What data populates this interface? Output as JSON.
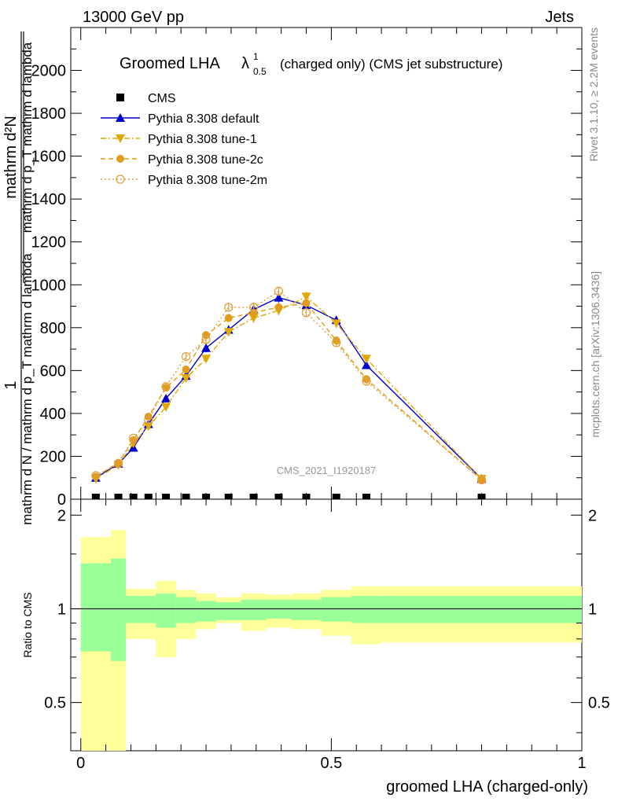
{
  "header": {
    "left": "13000 GeV pp",
    "right": "Jets"
  },
  "side_labels": {
    "rivet": "Rivet 3.1.10, ≥ 2.2M events",
    "mcplots": "mcplots.cern.ch [arXiv:1306.3436]"
  },
  "watermark": "CMS_2021_I1920187",
  "title": {
    "main": "Groomed LHA",
    "lambda": "λ",
    "sup": "1",
    "sub": "0.5",
    "rest": "(charged only) (CMS jet substructure)"
  },
  "legend": [
    {
      "label": "CMS",
      "color": "#000000",
      "marker": "square",
      "dash": "none"
    },
    {
      "label": "Pythia 8.308 default",
      "color": "#0000cc",
      "marker": "triangle-up",
      "dash": "solid"
    },
    {
      "label": "Pythia 8.308 tune-1",
      "color": "#e0a800",
      "marker": "triangle-down",
      "dash": "dashdot"
    },
    {
      "label": "Pythia 8.308 tune-2c",
      "color": "#e09c1a",
      "marker": "circle",
      "dash": "dashed"
    },
    {
      "label": "Pythia 8.308 tune-2m",
      "color": "#e0a040",
      "marker": "circle-open",
      "dash": "dotted"
    }
  ],
  "y_label": {
    "numer": "1",
    "denom": "mathrm d N / mathrm d p_T mathrm d lambda",
    "numer2": "mathrm d²N",
    "denom2": "mathrm d p_T mathrm d lambda"
  },
  "chart_data": [
    {
      "type": "line",
      "panel": "main",
      "x": [
        0.03,
        0.075,
        0.105,
        0.135,
        0.17,
        0.21,
        0.25,
        0.295,
        0.345,
        0.395,
        0.45,
        0.51,
        0.57,
        0.8
      ],
      "xlim": [
        -0.02,
        1.0
      ],
      "ylim": [
        0,
        2200
      ],
      "xticks": [
        0,
        0.5,
        1
      ],
      "xtick_labels": [
        "0",
        "0.5",
        "1"
      ],
      "yticks": [
        0,
        200,
        400,
        600,
        800,
        1000,
        1200,
        1400,
        1600,
        1800,
        2000
      ],
      "ytick_labels": [
        "0",
        "200",
        "400",
        "600",
        "800",
        "1000",
        "1200",
        "1400",
        "1600",
        "1800",
        "2000"
      ],
      "series": [
        {
          "name": "CMS",
          "values": [
            0,
            0,
            0,
            0,
            0,
            0,
            0,
            0,
            0,
            0,
            0,
            0,
            0,
            0
          ]
        },
        {
          "name": "Pythia 8.308 default",
          "values": [
            100,
            165,
            240,
            350,
            470,
            575,
            705,
            790,
            885,
            940,
            905,
            835,
            625,
            95
          ],
          "err": [
            8,
            10,
            12,
            15,
            18,
            18,
            20,
            20,
            22,
            22,
            22,
            20,
            18,
            8
          ]
        },
        {
          "name": "Pythia 8.308 tune-1",
          "values": [
            95,
            160,
            260,
            340,
            430,
            565,
            655,
            780,
            845,
            880,
            945,
            820,
            655,
            95
          ],
          "err": [
            8,
            10,
            12,
            15,
            18,
            18,
            20,
            20,
            22,
            22,
            22,
            20,
            18,
            8
          ]
        },
        {
          "name": "Pythia 8.308 tune-2c",
          "values": [
            105,
            170,
            275,
            385,
            520,
            605,
            765,
            845,
            870,
            895,
            915,
            740,
            560,
            90
          ],
          "err": [
            8,
            10,
            12,
            15,
            18,
            18,
            20,
            20,
            22,
            22,
            22,
            20,
            18,
            8
          ]
        },
        {
          "name": "Pythia 8.308 tune-2m",
          "values": [
            110,
            165,
            285,
            370,
            525,
            665,
            745,
            895,
            895,
            970,
            870,
            730,
            550,
            90
          ],
          "err": [
            8,
            10,
            12,
            15,
            18,
            18,
            20,
            20,
            22,
            22,
            22,
            20,
            18,
            8
          ]
        }
      ]
    },
    {
      "type": "area",
      "panel": "ratio",
      "ylabel": "Ratio to CMS",
      "xlabel": "groomed LHA (charged-only)",
      "ylim": [
        0.35,
        2.25
      ],
      "yticks": [
        0.5,
        1,
        2
      ],
      "ytick_labels": [
        "0.5",
        "1",
        "2"
      ],
      "reference": 1,
      "bins": [
        {
          "x0": 0.0,
          "x1": 0.06,
          "inner": [
            0.73,
            1.4
          ],
          "outer": [
            0.35,
            1.7
          ]
        },
        {
          "x0": 0.06,
          "x1": 0.09,
          "inner": [
            0.68,
            1.45
          ],
          "outer": [
            0.35,
            1.79
          ]
        },
        {
          "x0": 0.09,
          "x1": 0.12,
          "inner": [
            0.9,
            1.1
          ],
          "outer": [
            0.8,
            1.16
          ]
        },
        {
          "x0": 0.12,
          "x1": 0.15,
          "inner": [
            0.9,
            1.1
          ],
          "outer": [
            0.8,
            1.16
          ]
        },
        {
          "x0": 0.15,
          "x1": 0.19,
          "inner": [
            0.87,
            1.12
          ],
          "outer": [
            0.7,
            1.23
          ]
        },
        {
          "x0": 0.19,
          "x1": 0.23,
          "inner": [
            0.9,
            1.09
          ],
          "outer": [
            0.8,
            1.15
          ]
        },
        {
          "x0": 0.23,
          "x1": 0.27,
          "inner": [
            0.91,
            1.06
          ],
          "outer": [
            0.86,
            1.12
          ]
        },
        {
          "x0": 0.27,
          "x1": 0.32,
          "inner": [
            0.92,
            1.05
          ],
          "outer": [
            0.9,
            1.09
          ]
        },
        {
          "x0": 0.32,
          "x1": 0.37,
          "inner": [
            0.92,
            1.07
          ],
          "outer": [
            0.85,
            1.12
          ]
        },
        {
          "x0": 0.37,
          "x1": 0.42,
          "inner": [
            0.93,
            1.07
          ],
          "outer": [
            0.87,
            1.11
          ]
        },
        {
          "x0": 0.42,
          "x1": 0.48,
          "inner": [
            0.92,
            1.07
          ],
          "outer": [
            0.86,
            1.12
          ]
        },
        {
          "x0": 0.48,
          "x1": 0.54,
          "inner": [
            0.91,
            1.09
          ],
          "outer": [
            0.82,
            1.15
          ]
        },
        {
          "x0": 0.54,
          "x1": 0.6,
          "inner": [
            0.9,
            1.1
          ],
          "outer": [
            0.77,
            1.18
          ]
        },
        {
          "x0": 0.6,
          "x1": 1.0,
          "inner": [
            0.9,
            1.1
          ],
          "outer": [
            0.78,
            1.18
          ]
        }
      ]
    }
  ]
}
